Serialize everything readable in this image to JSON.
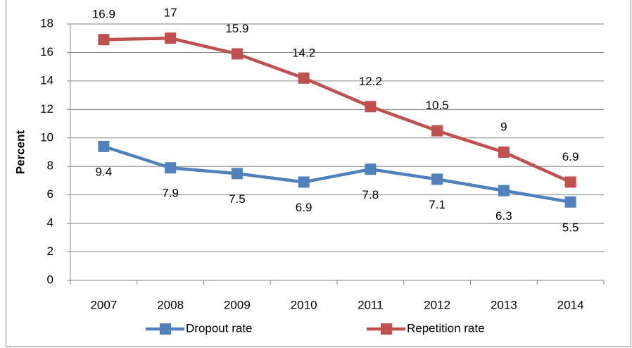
{
  "chart_data": {
    "type": "line",
    "y_label": "Percent",
    "categories": [
      "2007",
      "2008",
      "2009",
      "2010",
      "2011",
      "2012",
      "2013",
      "2014"
    ],
    "series": [
      {
        "name": "Dropout rate",
        "color": "#4f81bd",
        "values": [
          9.4,
          7.9,
          7.5,
          6.9,
          7.8,
          7.1,
          6.3,
          5.5
        ]
      },
      {
        "name": "Repetition rate",
        "color": "#c0504d",
        "values": [
          16.9,
          17,
          15.9,
          14.2,
          12.2,
          10.5,
          9,
          6.9
        ]
      }
    ],
    "ylim": [
      0,
      18
    ],
    "yticks": [
      0,
      2,
      4,
      6,
      8,
      10,
      12,
      14,
      16,
      18
    ],
    "grid": true,
    "legend": "bottom"
  }
}
